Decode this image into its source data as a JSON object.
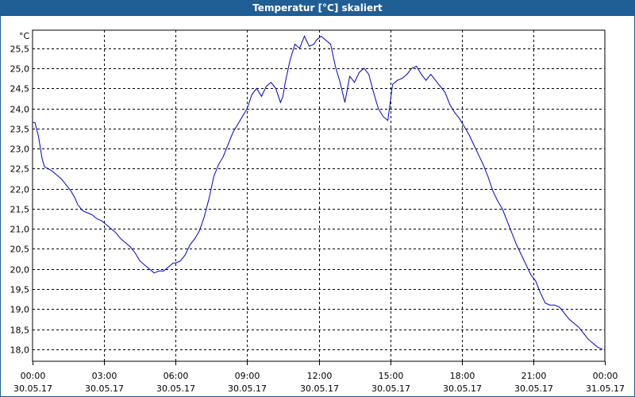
{
  "window": {
    "title": "Temperatur [°C] skaliert"
  },
  "chart_data": {
    "type": "line",
    "title": "Temperatur [°C] skaliert",
    "ylabel": "°C",
    "xlabel": "",
    "ylim": [
      17.7,
      25.95
    ],
    "grid": true,
    "y_ticks": [
      "25,5",
      "25,0",
      "24,5",
      "24,0",
      "23,5",
      "23,0",
      "22,5",
      "22,0",
      "21,5",
      "21,0",
      "20,5",
      "20,0",
      "19,5",
      "19,0",
      "18,5",
      "18,0"
    ],
    "y_tick_values": [
      25.5,
      25.0,
      24.5,
      24.0,
      23.5,
      23.0,
      22.5,
      22.0,
      21.5,
      21.0,
      20.5,
      20.0,
      19.5,
      19.0,
      18.5,
      18.0
    ],
    "x_range_hours": [
      0,
      24
    ],
    "x_ticks": [
      {
        "h": 0,
        "time": "00:00",
        "date": "30.05.17"
      },
      {
        "h": 3,
        "time": "03:00",
        "date": "30.05.17"
      },
      {
        "h": 6,
        "time": "06:00",
        "date": "30.05.17"
      },
      {
        "h": 9,
        "time": "09:00",
        "date": "30.05.17"
      },
      {
        "h": 12,
        "time": "12:00",
        "date": "30.05.17"
      },
      {
        "h": 15,
        "time": "15:00",
        "date": "30.05.17"
      },
      {
        "h": 18,
        "time": "18:00",
        "date": "30.05.17"
      },
      {
        "h": 21,
        "time": "21:00",
        "date": "30.05.17"
      },
      {
        "h": 24,
        "time": "00:00",
        "date": "31.05.17"
      }
    ],
    "series": [
      {
        "color": "#0000cc",
        "x_hours": [
          0,
          0.1,
          0.25,
          0.4,
          0.5,
          0.65,
          0.8,
          1.0,
          1.2,
          1.4,
          1.6,
          1.75,
          1.9,
          2.1,
          2.3,
          2.5,
          2.7,
          2.9,
          3.1,
          3.3,
          3.5,
          3.7,
          3.9,
          4.1,
          4.3,
          4.5,
          4.7,
          4.9,
          5.1,
          5.3,
          5.5,
          5.7,
          5.9,
          6.0,
          6.2,
          6.4,
          6.6,
          6.8,
          7.0,
          7.2,
          7.4,
          7.6,
          7.8,
          8.0,
          8.2,
          8.4,
          8.6,
          8.8,
          9.0,
          9.2,
          9.4,
          9.6,
          9.8,
          10.0,
          10.2,
          10.4,
          10.5,
          10.6,
          10.8,
          11.0,
          11.2,
          11.4,
          11.6,
          11.8,
          11.9,
          12.1,
          12.3,
          12.5,
          12.7,
          12.9,
          13.1,
          13.3,
          13.5,
          13.7,
          13.9,
          14.1,
          14.3,
          14.5,
          14.7,
          14.9,
          15.1,
          15.3,
          15.5,
          15.7,
          15.9,
          16.1,
          16.3,
          16.5,
          16.7,
          16.9,
          17.1,
          17.3,
          17.5,
          17.7,
          17.9,
          18.1,
          18.3,
          18.5,
          18.7,
          18.9,
          19.1,
          19.3,
          19.5,
          19.7,
          19.9,
          20.1,
          20.3,
          20.5,
          20.7,
          20.9,
          21.1,
          21.3,
          21.5,
          21.7,
          21.9,
          22.1,
          22.3,
          22.5,
          22.7,
          22.9,
          23.1,
          23.3,
          23.5,
          23.7,
          23.9
        ],
        "values": [
          23.65,
          23.65,
          23.3,
          22.75,
          22.55,
          22.5,
          22.45,
          22.35,
          22.25,
          22.1,
          21.95,
          21.8,
          21.6,
          21.45,
          21.4,
          21.35,
          21.25,
          21.2,
          21.1,
          21.0,
          20.9,
          20.75,
          20.65,
          20.55,
          20.4,
          20.2,
          20.1,
          20.0,
          19.9,
          19.95,
          19.95,
          20.05,
          20.15,
          20.15,
          20.2,
          20.35,
          20.6,
          20.75,
          20.95,
          21.3,
          21.75,
          22.3,
          22.6,
          22.8,
          23.1,
          23.4,
          23.6,
          23.8,
          24.0,
          24.35,
          24.5,
          24.3,
          24.55,
          24.65,
          24.5,
          24.15,
          24.3,
          24.65,
          25.2,
          25.6,
          25.5,
          25.8,
          25.55,
          25.6,
          25.7,
          25.8,
          25.7,
          25.6,
          25.05,
          24.65,
          24.15,
          24.8,
          24.65,
          24.9,
          25.0,
          24.85,
          24.4,
          24.0,
          23.8,
          23.7,
          24.6,
          24.7,
          24.75,
          24.85,
          25.0,
          25.05,
          24.85,
          24.7,
          24.85,
          24.7,
          24.55,
          24.4,
          24.1,
          23.9,
          23.75,
          23.55,
          23.35,
          23.1,
          22.85,
          22.6,
          22.3,
          21.95,
          21.7,
          21.5,
          21.2,
          20.9,
          20.6,
          20.35,
          20.1,
          19.85,
          19.7,
          19.4,
          19.15,
          19.1,
          19.1,
          19.05,
          18.9,
          18.75,
          18.65,
          18.55,
          18.4,
          18.25,
          18.15,
          18.05,
          18.0
        ]
      }
    ]
  }
}
